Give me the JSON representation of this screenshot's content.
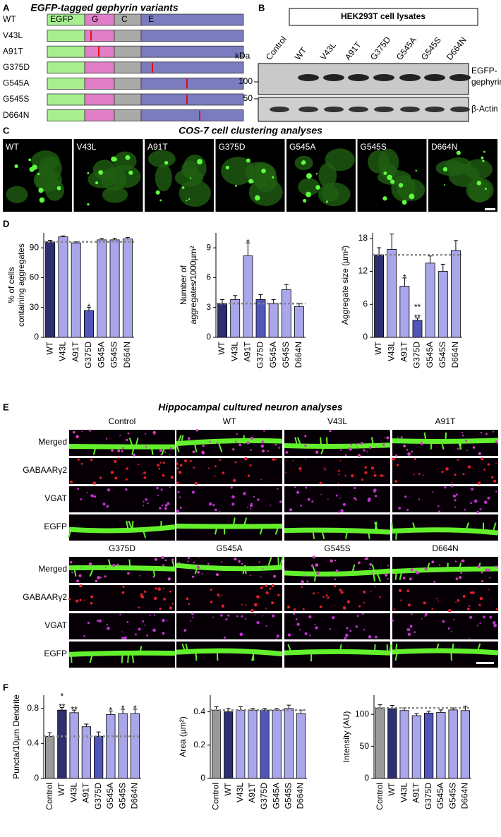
{
  "panel_labels": [
    "A",
    "B",
    "C",
    "D",
    "E",
    "F"
  ],
  "A": {
    "title": "EGFP-tagged gephyrin variants",
    "rows": [
      "WT",
      "V43L",
      "A91T",
      "G375D",
      "G545A",
      "G545S",
      "D664N"
    ],
    "domains": [
      "EGFP",
      "G",
      "C",
      "E"
    ]
  },
  "B": {
    "title": "HEK293T cell lysates",
    "lanes": [
      "Control",
      "WT",
      "V43L",
      "A91T",
      "G375D",
      "G545A",
      "G545S",
      "D664N"
    ],
    "unit": "kDa",
    "markers": [
      100,
      50
    ],
    "bands": [
      [
        "EGFP-",
        "gephyrin"
      ],
      [
        "β-Actin"
      ]
    ]
  },
  "C": {
    "title": "COS-7 cell clustering analyses",
    "images": [
      "WT",
      "V43L",
      "A91T",
      "G375D",
      "G545A",
      "G545S",
      "D664N"
    ]
  },
  "E": {
    "title": "Hippocampal cultured neuron analyses",
    "groups": [
      [
        "Control",
        "WT",
        "V43L",
        "A91T"
      ],
      [
        "G375D",
        "G545A",
        "G545S",
        "D664N"
      ]
    ],
    "rows": [
      "Merged",
      "GABAARγ2",
      "VGAT",
      "EGFP"
    ]
  },
  "chart_data": [
    {
      "type": "bar",
      "ylabel": [
        "% of cells",
        "containing aggregates"
      ],
      "categories": [
        "WT",
        "V43L",
        "A91T",
        "G375D",
        "G545A",
        "G545S",
        "D664N"
      ],
      "values": [
        96,
        101,
        95,
        27,
        98,
        98,
        99
      ],
      "errors": [
        1.5,
        1,
        1,
        3,
        1.5,
        1.5,
        1.5
      ],
      "colors": [
        "#2e2f6e",
        "#a9a6ea",
        "#a9a6ea",
        "#5057b8",
        "#a9a6ea",
        "#a9a6ea",
        "#a9a6ea"
      ],
      "ylim": [
        0,
        105
      ],
      "yticks": [
        0,
        30,
        60,
        90
      ],
      "annotations": [
        {
          "category": "G375D",
          "text": [
            "*"
          ]
        }
      ]
    },
    {
      "type": "bar",
      "ylabel": [
        "Number of",
        "aggregates/1000µm²"
      ],
      "categories": [
        "WT",
        "V43L",
        "A91T",
        "G375D",
        "G545A",
        "G545S",
        "D664N"
      ],
      "values": [
        3.4,
        3.8,
        8.2,
        3.8,
        3.4,
        4.8,
        3.1
      ],
      "errors": [
        0.4,
        0.4,
        1.3,
        0.5,
        0.4,
        0.5,
        0.3
      ],
      "colors": [
        "#2e2f6e",
        "#a9a6ea",
        "#a9a6ea",
        "#5057b8",
        "#a9a6ea",
        "#a9a6ea",
        "#a9a6ea"
      ],
      "ylim": [
        0,
        10.5
      ],
      "yticks": [
        0,
        3,
        6,
        9
      ],
      "annotations": [
        {
          "category": "A91T",
          "text": [
            "*"
          ]
        }
      ]
    },
    {
      "type": "bar",
      "ylabel": [
        "Aggregate size (µm²)"
      ],
      "categories": [
        "WT",
        "V43L",
        "A91T",
        "G375D",
        "G545A",
        "G545S",
        "D664N"
      ],
      "values": [
        15,
        16,
        9.3,
        3.1,
        13.5,
        12,
        15.8
      ],
      "errors": [
        1.3,
        2.8,
        1.5,
        0.4,
        1.3,
        1.3,
        1.8
      ],
      "colors": [
        "#2e2f6e",
        "#a9a6ea",
        "#a9a6ea",
        "#5057b8",
        "#a9a6ea",
        "#a9a6ea",
        "#a9a6ea"
      ],
      "ylim": [
        0,
        19
      ],
      "yticks": [
        0,
        6,
        12,
        18
      ],
      "annotations": [
        {
          "category": "A91T",
          "text": [
            "*"
          ]
        },
        {
          "category": "G375D",
          "text": [
            "**",
            "**"
          ]
        }
      ]
    },
    {
      "type": "bar",
      "ylabel": [
        "Puncta/10µm Dendrite"
      ],
      "categories": [
        "Control",
        "WT",
        "V43L",
        "A91T",
        "G375D",
        "G545A",
        "G545S",
        "D664N"
      ],
      "values": [
        0.48,
        0.78,
        0.75,
        0.59,
        0.48,
        0.73,
        0.74,
        0.74
      ],
      "errors": [
        0.04,
        0.03,
        0.03,
        0.03,
        0.05,
        0.04,
        0.05,
        0.05
      ],
      "colors": [
        "#999999",
        "#2e2f6e",
        "#a9a6ea",
        "#a9a6ea",
        "#5057b8",
        "#a9a6ea",
        "#a9a6ea",
        "#a9a6ea"
      ],
      "ylim": [
        0,
        0.95
      ],
      "yticks": [
        0,
        0.4,
        0.8
      ],
      "annotations": [
        {
          "category": "WT",
          "text": [
            "*",
            "**"
          ]
        },
        {
          "category": "V43L",
          "text": [
            "**"
          ]
        },
        {
          "category": "G545A",
          "text": [
            "*"
          ]
        },
        {
          "category": "G545S",
          "text": [
            "*"
          ]
        },
        {
          "category": "D664N",
          "text": [
            "*"
          ]
        }
      ]
    },
    {
      "type": "bar",
      "ylabel": [
        "Area (µm²)"
      ],
      "categories": [
        "Control",
        "WT",
        "V43L",
        "A91T",
        "G375D",
        "G545A",
        "G545S",
        "D664N"
      ],
      "values": [
        0.41,
        0.4,
        0.41,
        0.41,
        0.41,
        0.41,
        0.42,
        0.39
      ],
      "errors": [
        0.02,
        0.02,
        0.02,
        0.01,
        0.01,
        0.01,
        0.02,
        0.02
      ],
      "colors": [
        "#999999",
        "#2e2f6e",
        "#a9a6ea",
        "#a9a6ea",
        "#5057b8",
        "#a9a6ea",
        "#a9a6ea",
        "#a9a6ea"
      ],
      "ylim": [
        0,
        0.5
      ],
      "yticks": [
        0,
        0.2,
        0.4
      ],
      "annotations": []
    },
    {
      "type": "bar",
      "ylabel": [
        "Intensity (AU)"
      ],
      "categories": [
        "Control",
        "WT",
        "V43L",
        "A91T",
        "G375D",
        "G545A",
        "G545S",
        "D664N"
      ],
      "values": [
        110,
        109,
        106,
        98,
        102,
        103,
        107,
        106
      ],
      "errors": [
        5,
        5,
        4,
        3,
        3,
        4,
        3,
        7
      ],
      "colors": [
        "#999999",
        "#2e2f6e",
        "#a9a6ea",
        "#a9a6ea",
        "#5057b8",
        "#a9a6ea",
        "#a9a6ea",
        "#a9a6ea"
      ],
      "ylim": [
        0,
        130
      ],
      "yticks": [
        0,
        50,
        100
      ],
      "annotations": []
    }
  ]
}
